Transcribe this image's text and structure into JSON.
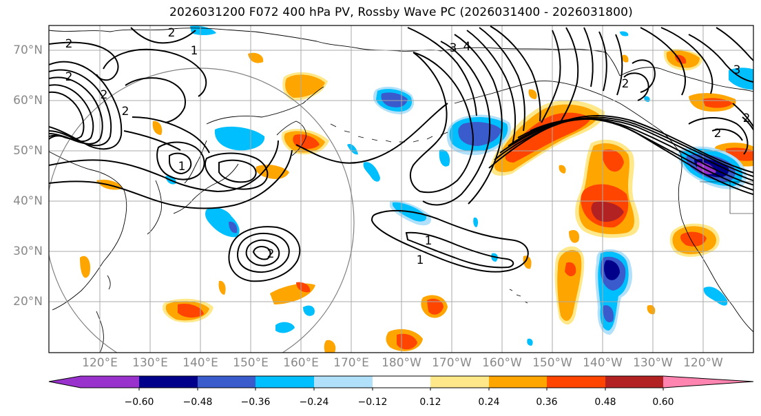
{
  "title": "2026031200 F072 400 hPa PV, Rossby Wave PC (2026031400 - 2026031800)",
  "map": {
    "lat_labels": [
      "70°N",
      "60°N",
      "50°N",
      "40°N",
      "30°N",
      "20°N"
    ],
    "lon_labels": [
      "120°E",
      "130°E",
      "140°E",
      "150°E",
      "160°E",
      "170°E",
      "180°W",
      "170°W",
      "160°W",
      "150°W",
      "140°W",
      "130°W",
      "120°W"
    ],
    "contour_labels": [
      "2",
      "2",
      "2",
      "1",
      "2",
      "2",
      "3",
      "4",
      "1",
      "2",
      "1",
      "1",
      "2",
      "2",
      "3",
      "2"
    ]
  },
  "colorbar": {
    "tick_labels": [
      "−0.60",
      "−0.48",
      "−0.36",
      "−0.24",
      "−0.12",
      "0.12",
      "0.24",
      "0.36",
      "0.48",
      "0.60"
    ],
    "colors": [
      "#9932cc",
      "#00008b",
      "#3a5bcc",
      "#00bfff",
      "#b0e0fa",
      "#ffffff",
      "#ffe88a",
      "#ffa500",
      "#ff4500",
      "#b22222",
      "#ff85b0"
    ]
  },
  "colors": {
    "land_coast": "#000000",
    "grid": "#aaaaaa",
    "axis_label": "#888888",
    "circle": "#808080"
  }
}
